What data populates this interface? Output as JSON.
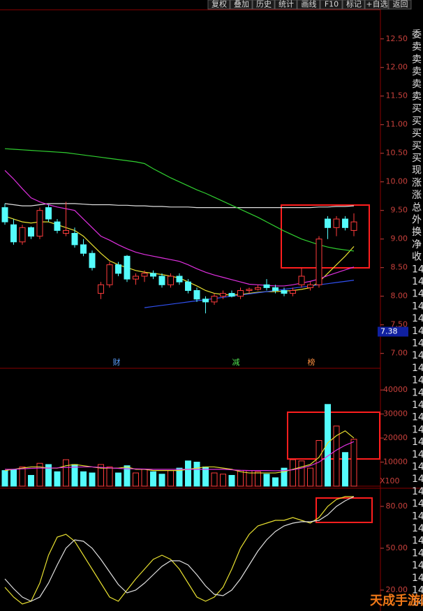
{
  "toolbar": [
    "复权",
    "叠加",
    "历史",
    "统计",
    "画线",
    "F10",
    "标记",
    "+自选",
    "返回"
  ],
  "side_panel": [
    "委",
    "卖",
    "卖",
    "卖",
    "卖",
    "卖",
    "买",
    "买",
    "买",
    "买",
    "买",
    "现",
    "涨",
    "涨",
    "总",
    "外",
    "换",
    "净",
    "收",
    "14",
    "14",
    "14",
    "14",
    "14",
    "14",
    "14",
    "14",
    "14",
    "14",
    "14",
    "14",
    "14",
    "14",
    "14",
    "14",
    "14",
    "14",
    "14",
    "14",
    "14",
    "14",
    "14",
    "14",
    "14",
    "14",
    "14",
    "14"
  ],
  "watermark": "天成手游网",
  "chart_data": [
    {
      "type": "candlestick",
      "up_color": "#ff3c3c",
      "down_color": "#54fcfc",
      "open": [
        9.55,
        9.25,
        8.95,
        9.2,
        9.05,
        9.55,
        9.3,
        9.1,
        9.1,
        8.9,
        8.75,
        8.05,
        8.2,
        8.55,
        8.7,
        8.3,
        8.35,
        8.4,
        8.35,
        8.2,
        8.35,
        8.25,
        8.1,
        7.95,
        7.9,
        8.0,
        8.05,
        8.0,
        8.1,
        8.12,
        8.2,
        8.15,
        8.1,
        8.05,
        8.2,
        8.15,
        8.2,
        9.35,
        9.2,
        9.35,
        9.15
      ],
      "high": [
        9.62,
        9.35,
        9.25,
        9.22,
        9.55,
        9.6,
        9.35,
        9.65,
        9.2,
        9.0,
        8.8,
        8.25,
        8.6,
        8.6,
        8.72,
        8.4,
        8.45,
        8.45,
        8.4,
        8.4,
        8.4,
        8.3,
        8.15,
        8.0,
        8.05,
        8.1,
        8.1,
        8.15,
        8.15,
        8.2,
        8.3,
        8.2,
        8.15,
        8.15,
        8.5,
        8.25,
        9.05,
        9.4,
        9.4,
        9.4,
        9.45
      ],
      "low": [
        9.25,
        8.9,
        8.9,
        9.0,
        9.0,
        9.3,
        9.1,
        9.05,
        8.85,
        8.7,
        8.45,
        7.95,
        8.15,
        8.35,
        8.25,
        8.2,
        8.25,
        8.3,
        8.15,
        8.15,
        8.2,
        8.05,
        7.9,
        7.7,
        7.85,
        7.95,
        7.98,
        7.95,
        8.05,
        8.1,
        8.1,
        8.05,
        8.0,
        8.0,
        8.15,
        8.1,
        8.15,
        9.0,
        9.05,
        9.15,
        9.05
      ],
      "close": [
        9.3,
        8.95,
        9.2,
        9.05,
        9.5,
        9.35,
        9.15,
        9.15,
        8.9,
        8.75,
        8.5,
        8.2,
        8.55,
        8.4,
        8.3,
        8.35,
        8.4,
        8.35,
        8.2,
        8.35,
        8.25,
        8.1,
        7.95,
        7.9,
        8.0,
        8.05,
        8.0,
        8.1,
        8.12,
        8.15,
        8.15,
        8.1,
        8.05,
        8.1,
        8.35,
        8.2,
        9.0,
        9.2,
        9.35,
        9.2,
        9.3
      ],
      "lines": [
        {
          "color": "#e0e0e0",
          "values": [
            9.62,
            9.6,
            9.58,
            9.58,
            9.6,
            9.62,
            9.62,
            9.62,
            9.62,
            9.61,
            9.6,
            9.6,
            9.6,
            9.59,
            9.59,
            9.58,
            9.58,
            9.57,
            9.57,
            9.56,
            9.56,
            9.56,
            9.55,
            9.55,
            9.55,
            9.55,
            9.55,
            9.55,
            9.55,
            9.55,
            9.55,
            9.55,
            9.55,
            9.55,
            9.55,
            9.55,
            9.56,
            9.56,
            9.57,
            9.57,
            9.58
          ]
        },
        {
          "color": "#e8e030",
          "values": [
            9.4,
            9.35,
            9.3,
            9.28,
            9.3,
            9.3,
            9.25,
            9.2,
            9.15,
            9.05,
            8.9,
            8.75,
            8.62,
            8.55,
            8.5,
            8.45,
            8.42,
            8.4,
            8.38,
            8.35,
            8.32,
            8.25,
            8.18,
            8.1,
            8.05,
            8.03,
            8.02,
            8.03,
            8.05,
            8.07,
            8.08,
            8.08,
            8.09,
            8.1,
            8.12,
            8.15,
            8.25,
            8.4,
            8.55,
            8.7,
            8.87
          ]
        },
        {
          "color": "#e030e0",
          "values": [
            10.2,
            10.05,
            9.88,
            9.72,
            9.65,
            9.6,
            9.56,
            9.53,
            9.5,
            9.35,
            9.2,
            9.05,
            8.98,
            8.9,
            8.83,
            8.77,
            8.73,
            8.7,
            8.67,
            8.64,
            8.61,
            8.55,
            8.48,
            8.42,
            8.37,
            8.33,
            8.29,
            8.25,
            8.21,
            8.2,
            8.19,
            8.18,
            8.18,
            8.2,
            8.23,
            8.26,
            8.3,
            8.36,
            8.41,
            8.46,
            8.51
          ]
        },
        {
          "color": "#30d030",
          "values": [
            10.58,
            10.57,
            10.56,
            10.55,
            10.54,
            10.53,
            10.52,
            10.51,
            10.49,
            10.47,
            10.45,
            10.43,
            10.41,
            10.39,
            10.37,
            10.35,
            10.32,
            10.23,
            10.15,
            10.07,
            10.0,
            9.93,
            9.86,
            9.8,
            9.73,
            9.66,
            9.59,
            9.52,
            9.45,
            9.38,
            9.3,
            9.22,
            9.14,
            9.07,
            9.0,
            8.95,
            8.9,
            8.86,
            8.83,
            8.81,
            8.79
          ]
        },
        {
          "color": "#3050f0",
          "values": [
            null,
            null,
            null,
            null,
            null,
            null,
            null,
            null,
            null,
            null,
            null,
            null,
            null,
            null,
            null,
            null,
            7.8,
            7.82,
            7.84,
            7.86,
            7.88,
            7.9,
            7.92,
            7.94,
            7.96,
            7.98,
            8.0,
            8.02,
            8.04,
            8.06,
            8.08,
            8.1,
            8.12,
            8.14,
            8.16,
            8.18,
            8.2,
            8.22,
            8.24,
            8.26,
            8.28
          ]
        }
      ],
      "annotations": [
        "财",
        "减",
        "榜"
      ],
      "price_marker": {
        "value": 7.38,
        "label": "7.38"
      },
      "ylim": [
        6.74,
        13.18
      ],
      "yticks": [
        {
          "value": 7,
          "label": "7.00"
        },
        {
          "value": 7.5,
          "label": "7.50"
        },
        {
          "value": 8,
          "label": "8.00"
        },
        {
          "value": 8.5,
          "label": "8.50"
        },
        {
          "value": 9,
          "label": "9.00"
        },
        {
          "value": 9.5,
          "label": "9.50"
        },
        {
          "value": 10,
          "label": "10.00"
        },
        {
          "value": 10.5,
          "label": "10.50"
        },
        {
          "value": 11,
          "label": "11.00"
        },
        {
          "value": 11.5,
          "label": "11.50"
        },
        {
          "value": 12,
          "label": "12.00"
        },
        {
          "value": 12.5,
          "label": "12.50"
        }
      ]
    },
    {
      "type": "bar",
      "values": [
        6500,
        7000,
        8000,
        4500,
        9500,
        9000,
        6000,
        11000,
        9000,
        6000,
        5500,
        9000,
        8000,
        5500,
        8500,
        5500,
        7000,
        6000,
        5000,
        6500,
        7500,
        10500,
        10000,
        8000,
        5500,
        5000,
        4500,
        6500,
        6500,
        6000,
        5000,
        3500,
        7500,
        11000,
        10500,
        7500,
        19000,
        34000,
        25000,
        14000,
        19500
      ],
      "lines": [
        {
          "color": "#e8e030",
          "values": [
            6500,
            7000,
            7500,
            8000,
            8000,
            7500,
            7500,
            8500,
            9000,
            8500,
            8000,
            7500,
            7500,
            7500,
            8000,
            7000,
            7000,
            6500,
            6500,
            6500,
            6500,
            7000,
            7500,
            8000,
            8000,
            7500,
            7000,
            6000,
            5500,
            5500,
            5500,
            5500,
            6000,
            7000,
            8000,
            9000,
            12000,
            18000,
            21000,
            23000,
            20000
          ]
        },
        {
          "color": "#e030e0",
          "values": [
            7000,
            7000,
            7200,
            7400,
            7500,
            7500,
            7600,
            7800,
            7900,
            8000,
            8000,
            7800,
            7600,
            7400,
            7200,
            7200,
            7100,
            7000,
            7000,
            7000,
            7000,
            7000,
            7000,
            7000,
            7000,
            7000,
            6800,
            6600,
            6500,
            6500,
            6500,
            6400,
            6500,
            6800,
            7500,
            8500,
            10000,
            12500,
            15000,
            17000,
            18500
          ]
        }
      ],
      "unit_label": "X100",
      "ylim": [
        0,
        47000
      ],
      "yticks": [
        10000,
        20000,
        30000,
        40000
      ]
    },
    {
      "type": "line",
      "lines": [
        {
          "color": "#e8e030",
          "values": [
            22,
            15,
            10,
            12,
            25,
            45,
            58,
            60,
            55,
            45,
            35,
            25,
            15,
            12,
            20,
            28,
            35,
            42,
            45,
            42,
            35,
            25,
            15,
            12,
            15,
            22,
            35,
            50,
            60,
            66,
            68,
            70,
            70,
            72,
            70,
            68,
            72,
            80,
            85,
            87,
            87
          ]
        },
        {
          "color": "#e0e0e0",
          "values": [
            28,
            21,
            15,
            12,
            15,
            25,
            38,
            50,
            56,
            55,
            50,
            42,
            33,
            24,
            18,
            20,
            25,
            31,
            37,
            41,
            41,
            38,
            31,
            23,
            17,
            16,
            20,
            28,
            38,
            48,
            56,
            62,
            66,
            68,
            69,
            69,
            70,
            74,
            80,
            84,
            87
          ]
        }
      ],
      "ylim": [
        8,
        93
      ],
      "yticks": [
        {
          "value": 20,
          "label": "20.00"
        },
        {
          "value": 50,
          "label": "50.00"
        },
        {
          "value": 80,
          "label": "80.00"
        }
      ]
    }
  ]
}
